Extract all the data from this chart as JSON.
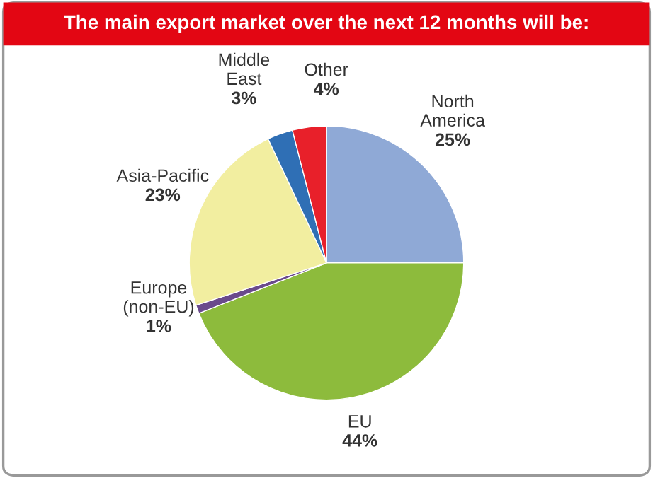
{
  "chart_data": {
    "type": "pie",
    "title": "The main export market over the next 12 months will be:",
    "categories": [
      "North America",
      "EU",
      "Europe (non-EU)",
      "Asia-Pacific",
      "Middle East",
      "Other"
    ],
    "values": [
      25,
      44,
      1,
      23,
      3,
      4
    ],
    "value_labels": [
      "25%",
      "44%",
      "1%",
      "23%",
      "3%",
      "4%"
    ],
    "colors": [
      "#8fa9d6",
      "#8dbb3c",
      "#6a4a8c",
      "#f2eea0",
      "#2f6fb5",
      "#e8202a"
    ]
  }
}
